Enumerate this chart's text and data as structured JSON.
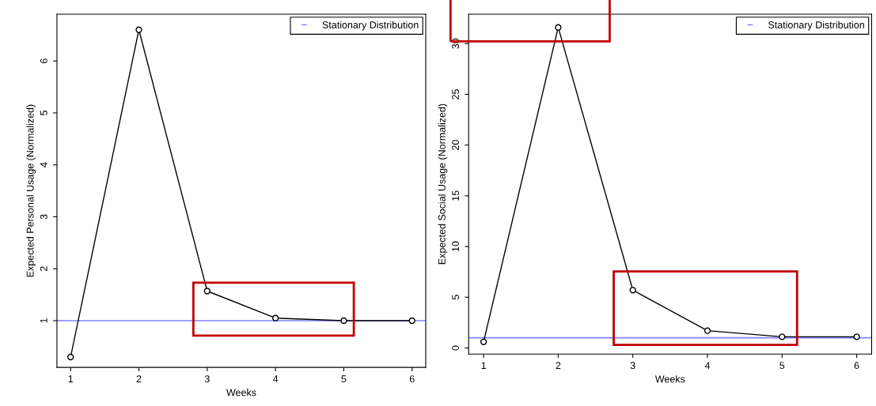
{
  "chart_data": [
    {
      "type": "line",
      "xlabel": "Weeks",
      "ylabel": "Expected Personal Usage (Normalized)",
      "x": [
        1,
        2,
        3,
        4,
        5,
        6
      ],
      "series": [
        {
          "color": "#000000",
          "values": [
            0.3,
            6.6,
            1.57,
            1.05,
            1.0,
            1.0
          ]
        }
      ],
      "xlim": [
        0.8,
        6.2
      ],
      "xticks": [
        1,
        2,
        3,
        4,
        5,
        6
      ],
      "ylim": [
        0.1,
        6.9
      ],
      "yticks": [
        1,
        2,
        3,
        4,
        5,
        6
      ],
      "ref_lines": [
        {
          "axis": "y",
          "value": 1,
          "label": "Stationary Distribution",
          "color": "#8080ff"
        }
      ],
      "marker": "circle",
      "grid": false,
      "legend": "top right"
    },
    {
      "type": "line",
      "xlabel": "Weeks",
      "ylabel": "Expected Social Usage (Normalized)",
      "x": [
        1,
        2,
        3,
        4,
        5,
        6
      ],
      "series": [
        {
          "color": "#000000",
          "values": [
            0.6,
            31.6,
            5.7,
            1.7,
            1.1,
            1.1
          ]
        }
      ],
      "xlim": [
        0.8,
        6.2
      ],
      "xticks": [
        1,
        2,
        3,
        4,
        5,
        6
      ],
      "ylim": [
        -0.6,
        32.9
      ],
      "yticks": [
        0,
        5,
        10,
        15,
        20,
        25,
        30
      ],
      "ref_lines": [
        {
          "axis": "y",
          "value": 1,
          "label": "Stationary Distribution",
          "color": "#8080ff"
        }
      ],
      "marker": "circle",
      "grid": false,
      "legend": "top right"
    }
  ]
}
